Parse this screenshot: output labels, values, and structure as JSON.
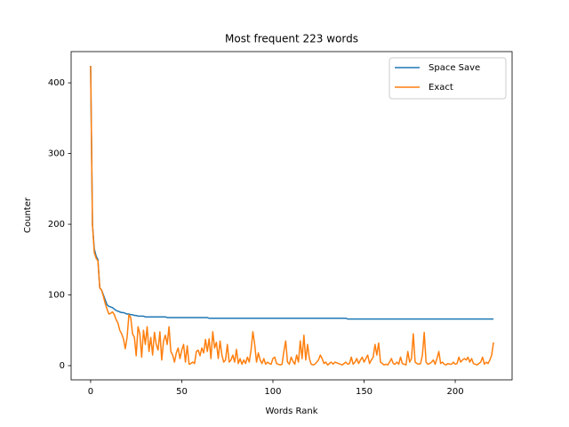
{
  "chart_data": {
    "type": "line",
    "title": "Most frequent 223 words",
    "x_label": "Words Rank",
    "y_label": "Counter",
    "x": [
      0,
      1,
      2,
      3,
      4,
      5,
      6,
      7,
      8,
      9,
      10,
      11,
      12,
      13,
      14,
      15,
      16,
      17,
      18,
      19,
      20,
      21,
      22,
      23,
      24,
      25,
      26,
      27,
      28,
      29,
      30,
      31,
      32,
      33,
      34,
      35,
      36,
      37,
      38,
      39,
      40,
      41,
      42,
      43,
      44,
      45,
      46,
      47,
      48,
      49,
      50,
      51,
      52,
      53,
      54,
      55,
      56,
      57,
      58,
      59,
      60,
      61,
      62,
      63,
      64,
      65,
      66,
      67,
      68,
      69,
      70,
      71,
      72,
      73,
      74,
      75,
      76,
      77,
      78,
      79,
      80,
      81,
      82,
      83,
      84,
      85,
      86,
      87,
      88,
      89,
      90,
      91,
      92,
      93,
      94,
      95,
      96,
      97,
      98,
      99,
      100,
      101,
      102,
      103,
      104,
      105,
      106,
      107,
      108,
      109,
      110,
      111,
      112,
      113,
      114,
      115,
      116,
      117,
      118,
      119,
      120,
      121,
      122,
      123,
      124,
      125,
      126,
      127,
      128,
      129,
      130,
      131,
      132,
      133,
      134,
      135,
      136,
      137,
      138,
      139,
      140,
      141,
      142,
      143,
      144,
      145,
      146,
      147,
      148,
      149,
      150,
      151,
      152,
      153,
      154,
      155,
      156,
      157,
      158,
      159,
      160,
      161,
      162,
      163,
      164,
      165,
      166,
      167,
      168,
      169,
      170,
      171,
      172,
      173,
      174,
      175,
      176,
      177,
      178,
      179,
      180,
      181,
      182,
      183,
      184,
      185,
      186,
      187,
      188,
      189,
      190,
      191,
      192,
      193,
      194,
      195,
      196,
      197,
      198,
      199,
      200,
      201,
      202,
      203,
      204,
      205,
      206,
      207,
      208,
      209,
      210,
      211,
      212,
      213,
      214,
      215,
      216,
      217,
      218,
      219,
      220,
      221
    ],
    "series": [
      {
        "name": "Space Save",
        "color": "#1f77b4",
        "values": [
          424,
          200,
          165,
          155,
          150,
          110,
          107,
          100,
          93,
          86,
          84,
          83,
          82,
          80,
          78,
          77,
          76,
          75,
          75,
          74,
          73,
          73,
          72,
          72,
          71,
          71,
          70,
          70,
          70,
          70,
          69,
          69,
          69,
          69,
          69,
          69,
          69,
          69,
          69,
          69,
          69,
          69,
          68,
          68,
          68,
          68,
          68,
          68,
          68,
          68,
          68,
          68,
          68,
          68,
          68,
          68,
          68,
          68,
          68,
          68,
          68,
          68,
          68,
          68,
          68,
          67,
          67,
          67,
          67,
          67,
          67,
          67,
          67,
          67,
          67,
          67,
          67,
          67,
          67,
          67,
          67,
          67,
          67,
          67,
          67,
          67,
          67,
          67,
          67,
          67,
          67,
          67,
          67,
          67,
          67,
          67,
          67,
          67,
          67,
          67,
          67,
          67,
          67,
          67,
          67,
          67,
          67,
          67,
          67,
          67,
          67,
          67,
          67,
          67,
          67,
          67,
          67,
          67,
          67,
          67,
          67,
          67,
          67,
          67,
          67,
          67,
          67,
          67,
          67,
          67,
          67,
          67,
          67,
          67,
          67,
          67,
          67,
          67,
          67,
          67,
          67,
          66,
          66,
          66,
          66,
          66,
          66,
          66,
          66,
          66,
          66,
          66,
          66,
          66,
          66,
          66,
          66,
          66,
          66,
          66,
          66,
          66,
          66,
          66,
          66,
          66,
          66,
          66,
          66,
          66,
          66,
          66,
          66,
          66,
          66,
          66,
          66,
          66,
          66,
          66,
          66,
          66,
          66,
          66,
          66,
          66,
          66,
          66,
          66,
          66,
          66,
          66,
          66,
          66,
          66,
          66,
          66,
          66,
          66,
          66,
          66,
          66,
          66,
          66,
          66,
          66,
          66,
          66,
          66,
          66,
          66,
          66,
          66,
          66,
          66,
          66,
          66,
          66,
          66,
          66,
          66,
          66
        ]
      },
      {
        "name": "Exact",
        "color": "#ff7f0e",
        "values": [
          424,
          200,
          160,
          152,
          148,
          110,
          107,
          98,
          88,
          80,
          73,
          74,
          76,
          72,
          65,
          60,
          50,
          45,
          38,
          24,
          40,
          72,
          68,
          45,
          40,
          14,
          55,
          45,
          12,
          50,
          30,
          55,
          20,
          40,
          15,
          47,
          30,
          22,
          48,
          8,
          35,
          43,
          30,
          55,
          20,
          15,
          5,
          18,
          25,
          10,
          22,
          30,
          5,
          28,
          2,
          3,
          5,
          3,
          20,
          22,
          14,
          25,
          18,
          37,
          20,
          38,
          10,
          48,
          25,
          33,
          10,
          35,
          15,
          5,
          8,
          30,
          5,
          8,
          15,
          5,
          23,
          3,
          10,
          2,
          8,
          3,
          12,
          5,
          22,
          48,
          30,
          5,
          18,
          8,
          3,
          10,
          2,
          5,
          3,
          2,
          10,
          12,
          3,
          2,
          1,
          2,
          20,
          35,
          5,
          2,
          12,
          6,
          2,
          15,
          5,
          35,
          10,
          43,
          8,
          30,
          10,
          2,
          1,
          2,
          5,
          8,
          15,
          10,
          3,
          5,
          1,
          3,
          5,
          2,
          5,
          4,
          3,
          2,
          1,
          3,
          5,
          2,
          3,
          12,
          2,
          5,
          10,
          3,
          8,
          12,
          5,
          10,
          15,
          3,
          8,
          12,
          30,
          15,
          32,
          5,
          3,
          1,
          2,
          1,
          5,
          10,
          3,
          2,
          5,
          2,
          12,
          3,
          2,
          1,
          20,
          5,
          10,
          45,
          5,
          3,
          2,
          3,
          15,
          47,
          5,
          2,
          3,
          5,
          8,
          2,
          10,
          20,
          3,
          5,
          2,
          1,
          3,
          2,
          2,
          5,
          2,
          3,
          12,
          5,
          8,
          10,
          8,
          12,
          5,
          10,
          3,
          2,
          1,
          3,
          5,
          12,
          2,
          5,
          3,
          8,
          15,
          33
        ]
      }
    ],
    "xlim": [
      -10.7,
      231.2
    ],
    "ylim": [
      -20.1,
      444.2
    ],
    "xticks": [
      0,
      50,
      100,
      150,
      200
    ],
    "yticks": [
      0,
      100,
      200,
      300,
      400
    ],
    "legend": "upper right"
  }
}
